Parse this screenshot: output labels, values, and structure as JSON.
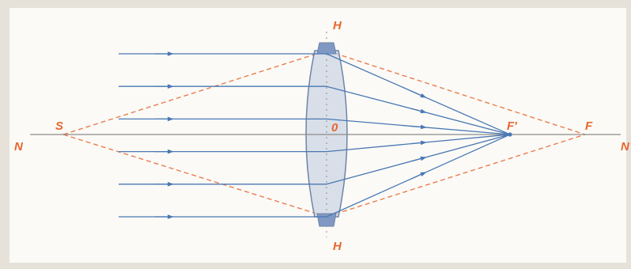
{
  "diagram": {
    "labels": {
      "axis_left": "N",
      "axis_right": "N",
      "plane_top": "H",
      "plane_bottom": "H",
      "center": "0",
      "point_s": "S",
      "focus_inner": "F'",
      "focus_outer": "F"
    },
    "ray_count": 6,
    "colors": {
      "background": "#e6e2da",
      "panel": "#fbfaf6",
      "ray": "#4a78b4",
      "axis": "#8c8c8c",
      "dashed": "#ec7c4e",
      "label": "#e8662e",
      "lens_fill": "#cdd6e3",
      "lens_stroke": "#6e84a8",
      "lens_cap": "#7f98c4"
    }
  }
}
